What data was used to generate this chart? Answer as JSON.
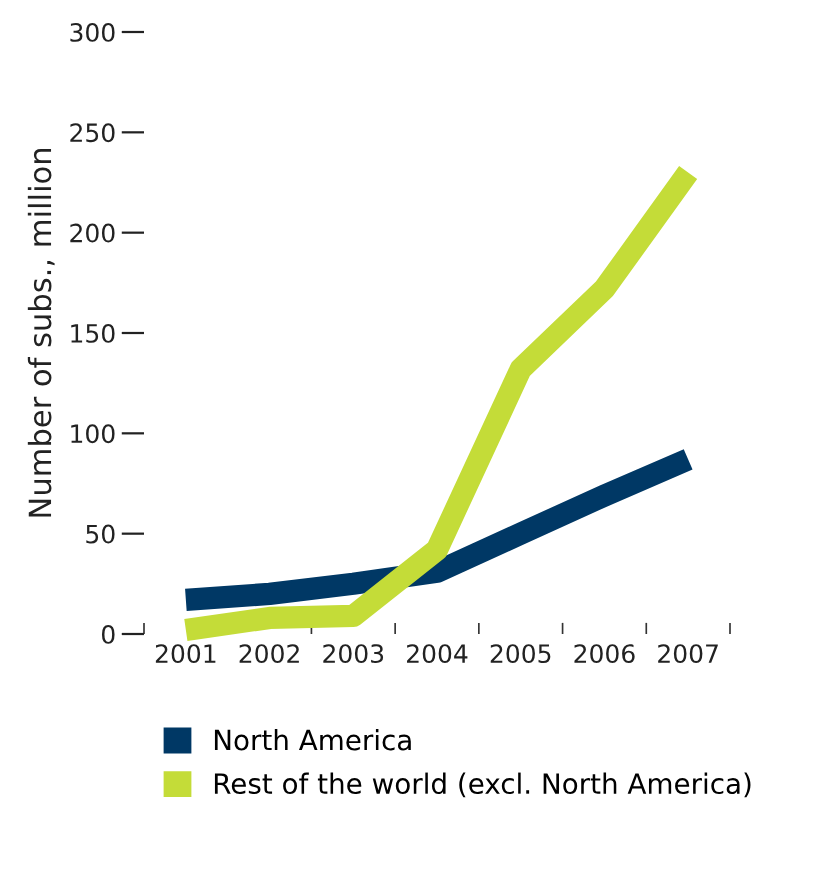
{
  "chart_data": {
    "type": "line",
    "ylabel": "Number of subs., million",
    "categories": [
      "2001",
      "2002",
      "2003",
      "2004",
      "2005",
      "2006",
      "2007"
    ],
    "series": [
      {
        "name": "North America",
        "color": "#003865",
        "values": [
          17,
          20,
          25,
          31,
          50,
          69,
          87
        ]
      },
      {
        "name": "Rest of the world (excl. North America)",
        "color": "#c4dc38",
        "values": [
          2,
          8,
          9,
          42,
          132,
          172,
          230
        ]
      }
    ],
    "ylim": [
      0,
      300
    ],
    "yticks": [
      0,
      50,
      100,
      150,
      200,
      250,
      300
    ],
    "grid": false,
    "legend": "bottom",
    "line_style": "solid",
    "marker": "none"
  }
}
